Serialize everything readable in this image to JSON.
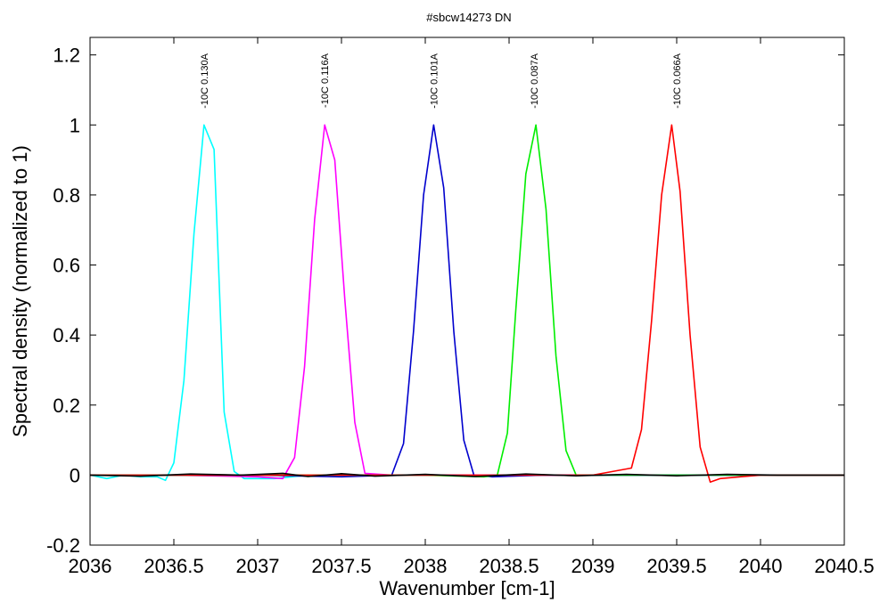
{
  "chart_data": {
    "type": "line",
    "title": "#sbcw14273 DN",
    "xlabel": "Wavenumber [cm-1]",
    "ylabel": "Spectral density (normalized to 1)",
    "xlim": [
      2036,
      2040.5
    ],
    "ylim": [
      -0.2,
      1.25
    ],
    "xticks": [
      2036,
      2036.5,
      2037,
      2037.5,
      2038,
      2038.5,
      2039,
      2039.5,
      2040,
      2040.5
    ],
    "xtick_labels": [
      "2036",
      "2036.5",
      "2037",
      "2037.5",
      "2038",
      "2038.5",
      "2039",
      "2039.5",
      "2040",
      "2040.5"
    ],
    "yticks": [
      -0.2,
      0,
      0.2,
      0.4,
      0.6,
      0.8,
      1,
      1.2
    ],
    "ytick_labels": [
      "-0.2",
      "0",
      "0.2",
      "0.4",
      "0.6",
      "0.8",
      "1",
      "1.2"
    ],
    "grid": false,
    "legend": "none",
    "series": [
      {
        "color": "#00ffff",
        "annotation": "-10C 0.130A",
        "peak_x": 2036.68,
        "x": [
          2036.0,
          2036.1,
          2036.2,
          2036.3,
          2036.4,
          2036.45,
          2036.5,
          2036.56,
          2036.62,
          2036.68,
          2036.74,
          2036.8,
          2036.86,
          2036.92,
          2036.98,
          2037.1,
          2037.3,
          2037.5,
          2037.7,
          2038.0,
          2038.5,
          2039.0,
          2039.5,
          2040.0,
          2040.5
        ],
        "y": [
          0.0,
          -0.01,
          0.0,
          -0.005,
          -0.005,
          -0.015,
          0.035,
          0.27,
          0.69,
          1.0,
          0.93,
          0.18,
          0.01,
          -0.01,
          -0.01,
          -0.01,
          0.0,
          0.0,
          0.0,
          0.0,
          0.0,
          0.0,
          0.0,
          0.0,
          0.0
        ]
      },
      {
        "color": "#ff00ff",
        "annotation": "-10C 0.116A",
        "peak_x": 2037.4,
        "x": [
          2036.0,
          2036.5,
          2037.0,
          2037.15,
          2037.22,
          2037.28,
          2037.34,
          2037.4,
          2037.46,
          2037.52,
          2037.58,
          2037.64,
          2037.8,
          2038.0,
          2038.5,
          2039.0,
          2039.5,
          2040.0,
          2040.5
        ],
        "y": [
          0.0,
          0.0,
          -0.005,
          -0.01,
          0.05,
          0.31,
          0.73,
          1.0,
          0.9,
          0.5,
          0.15,
          0.005,
          0.0,
          0.0,
          0.0,
          0.0,
          0.0,
          0.0,
          0.0
        ]
      },
      {
        "color": "#0000cd",
        "annotation": "-10C 0.101A",
        "peak_x": 2038.05,
        "x": [
          2036.0,
          2036.5,
          2037.0,
          2037.5,
          2037.8,
          2037.87,
          2037.93,
          2037.99,
          2038.05,
          2038.11,
          2038.17,
          2038.23,
          2038.29,
          2038.4,
          2038.7,
          2039.0,
          2039.5,
          2040.0,
          2040.5
        ],
        "y": [
          0.0,
          0.0,
          0.0,
          -0.005,
          0.0,
          0.09,
          0.41,
          0.8,
          1.0,
          0.82,
          0.41,
          0.1,
          0.0,
          -0.005,
          0.0,
          0.0,
          0.0,
          0.0,
          0.0
        ]
      },
      {
        "color": "#00ee00",
        "annotation": "-10C 0.087A",
        "peak_x": 2038.65,
        "x": [
          2036.0,
          2036.5,
          2037.0,
          2037.5,
          2038.0,
          2038.35,
          2038.43,
          2038.49,
          2038.54,
          2038.6,
          2038.66,
          2038.72,
          2038.78,
          2038.84,
          2038.9,
          2039.0,
          2039.5,
          2040.0,
          2040.5
        ],
        "y": [
          0.0,
          0.0,
          0.0,
          0.0,
          0.0,
          -0.005,
          0.0,
          0.12,
          0.47,
          0.86,
          1.0,
          0.76,
          0.34,
          0.07,
          0.0,
          0.0,
          0.0,
          0.0,
          0.0
        ]
      },
      {
        "color": "#ff0000",
        "annotation": "-10C 0.066A",
        "peak_x": 2039.5,
        "x": [
          2036.0,
          2036.5,
          2037.0,
          2037.5,
          2038.0,
          2038.5,
          2039.0,
          2039.23,
          2039.29,
          2039.35,
          2039.41,
          2039.47,
          2039.52,
          2039.58,
          2039.64,
          2039.7,
          2039.76,
          2039.88,
          2040.0,
          2040.5
        ],
        "y": [
          0.0,
          0.0,
          0.0,
          0.0,
          0.0,
          0.0,
          0.0,
          0.02,
          0.13,
          0.44,
          0.8,
          1.0,
          0.81,
          0.4,
          0.08,
          -0.02,
          -0.01,
          -0.005,
          0.0,
          0.0
        ]
      },
      {
        "color": "#000000",
        "annotation": "",
        "peak_x": null,
        "x": [
          2036.0,
          2036.3,
          2036.6,
          2036.9,
          2037.15,
          2037.3,
          2037.5,
          2037.7,
          2038.0,
          2038.3,
          2038.6,
          2038.9,
          2039.2,
          2039.5,
          2039.8,
          2040.1,
          2040.5
        ],
        "y": [
          0.0,
          -0.003,
          0.003,
          0.0,
          0.005,
          -0.004,
          0.004,
          -0.003,
          0.002,
          -0.004,
          0.003,
          -0.002,
          0.002,
          -0.002,
          0.002,
          0.0,
          0.0
        ]
      }
    ]
  }
}
